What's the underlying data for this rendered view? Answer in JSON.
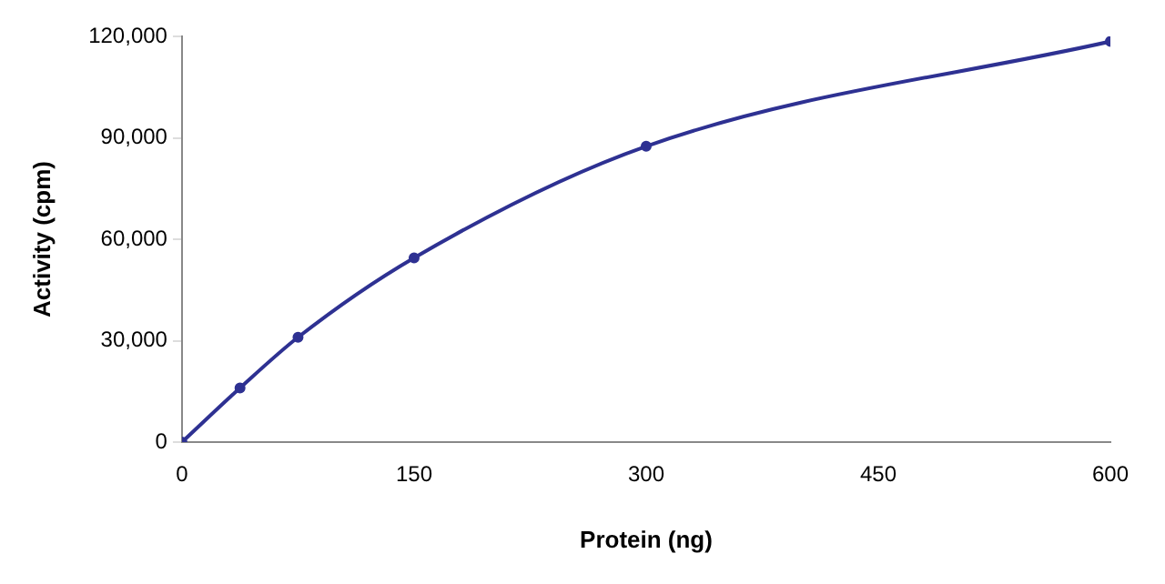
{
  "chart_data": {
    "type": "line",
    "xlabel": "Protein (ng)",
    "ylabel": "Activity (cpm)",
    "x": [
      0,
      37.5,
      75,
      150,
      300,
      600
    ],
    "series": [
      {
        "color": "#2e3192",
        "values": [
          0,
          16000,
          31000,
          54500,
          87500,
          118500
        ]
      }
    ],
    "xlim": [
      0,
      600
    ],
    "xticks": [
      0,
      150,
      300,
      450,
      600
    ],
    "ylim": [
      0,
      120000
    ],
    "yticks": [
      {
        "value": 0,
        "label": "0"
      },
      {
        "value": 30000,
        "label": "30,000"
      },
      {
        "value": 60000,
        "label": "60,000"
      },
      {
        "value": 90000,
        "label": "90,000"
      },
      {
        "value": 120000,
        "label": "120,000"
      }
    ],
    "grid": false,
    "legend": false,
    "marker": "circle",
    "line_style": "solid"
  }
}
